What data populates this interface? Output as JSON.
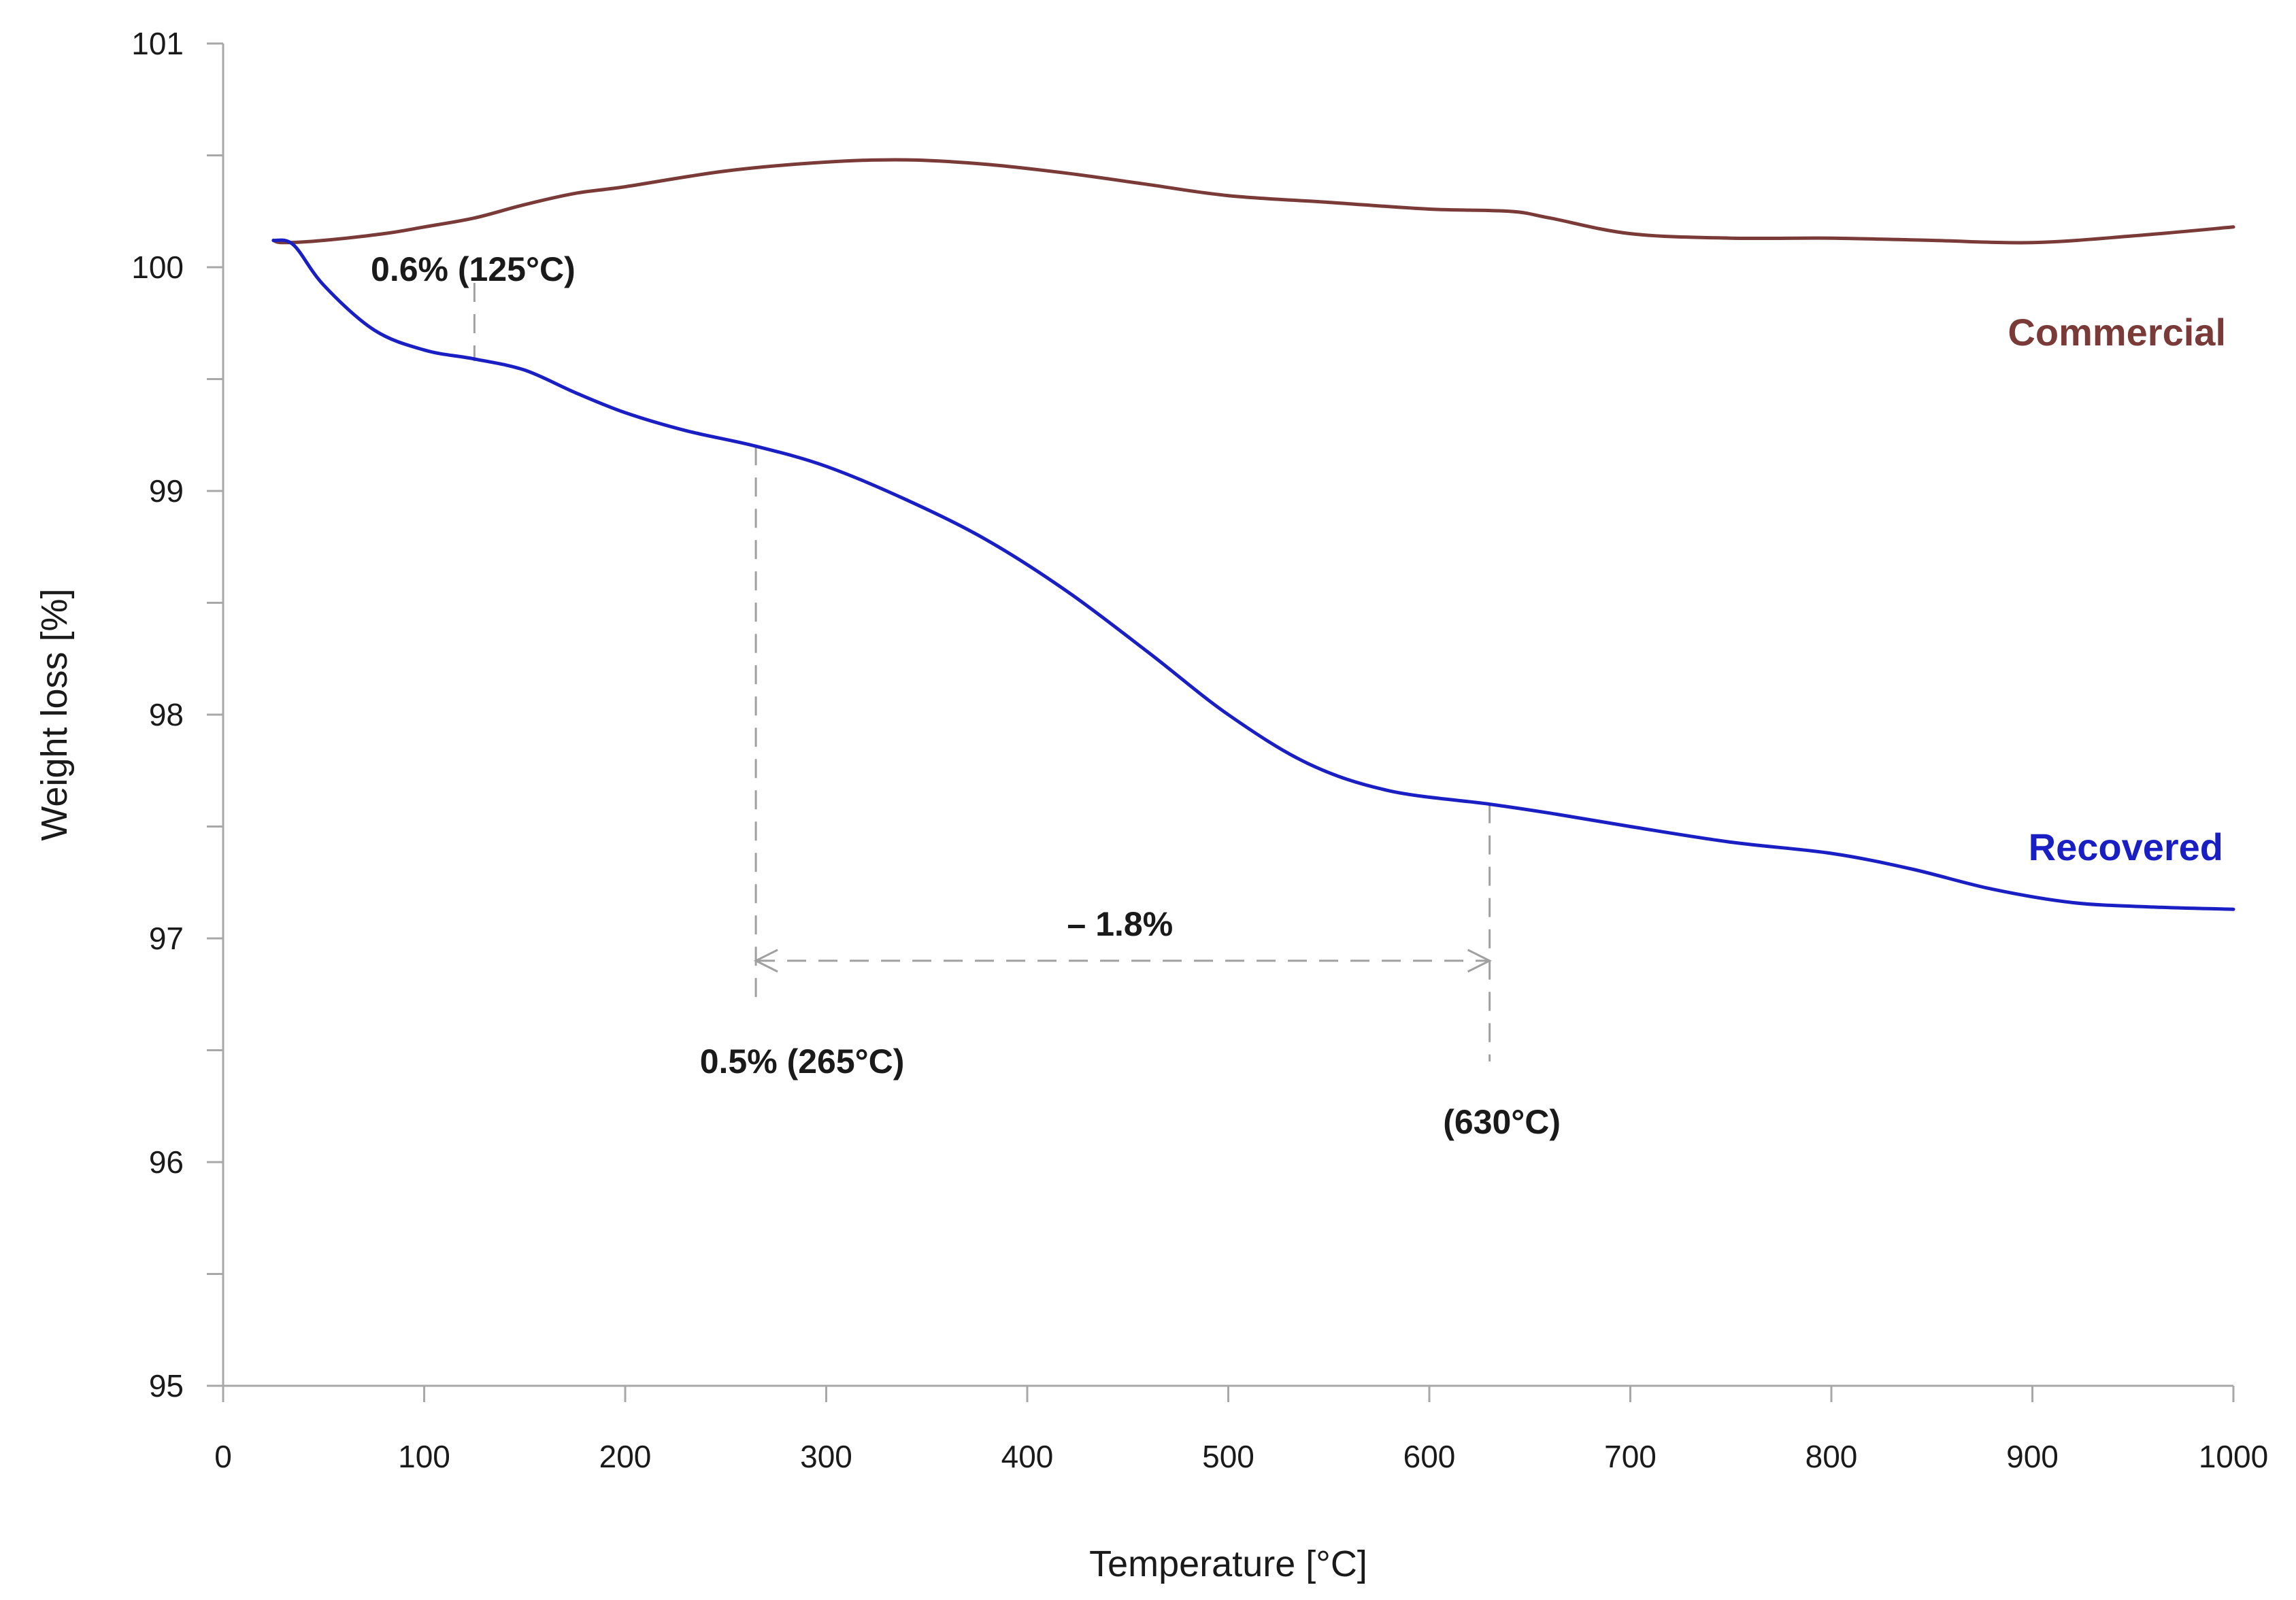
{
  "chart_data": {
    "type": "line",
    "title": "",
    "xlabel": "Temperature [°C]",
    "ylabel": "Weight loss [%]",
    "xlim": [
      0,
      1000
    ],
    "ylim": [
      95,
      101
    ],
    "xticks": [
      0,
      100,
      200,
      300,
      400,
      500,
      600,
      700,
      800,
      900,
      1000
    ],
    "xtick_labels": [
      "0",
      "100",
      "200",
      "300",
      "400",
      "500",
      "600",
      "700",
      "800",
      "900",
      "1000"
    ],
    "yticks_labeled": [
      95,
      96,
      97,
      98,
      99,
      100,
      101
    ],
    "ytick_labels": [
      "95",
      "96",
      "97",
      "98",
      "99",
      "100",
      "101"
    ],
    "yticks_minor": [
      95.5,
      96.5,
      97.5,
      98.5,
      99.5,
      100.5
    ],
    "grid": false,
    "series": [
      {
        "name": "Commercial",
        "color": "#7a3b38",
        "x": [
          25,
          30,
          50,
          80,
          100,
          125,
          150,
          175,
          200,
          250,
          300,
          340,
          380,
          420,
          460,
          500,
          550,
          600,
          640,
          660,
          700,
          750,
          800,
          850,
          900,
          950,
          1000
        ],
        "y": [
          100.12,
          100.11,
          100.12,
          100.15,
          100.18,
          100.22,
          100.28,
          100.33,
          100.36,
          100.43,
          100.47,
          100.48,
          100.46,
          100.42,
          100.37,
          100.32,
          100.29,
          100.26,
          100.25,
          100.22,
          100.15,
          100.13,
          100.13,
          100.12,
          100.11,
          100.14,
          100.18
        ]
      },
      {
        "name": "Recovered",
        "color": "#1a1fc4",
        "x": [
          25,
          35,
          50,
          75,
          100,
          125,
          150,
          175,
          200,
          230,
          265,
          300,
          340,
          380,
          420,
          460,
          500,
          540,
          580,
          630,
          660,
          700,
          750,
          800,
          840,
          880,
          920,
          960,
          1000
        ],
        "y": [
          100.12,
          100.1,
          99.92,
          99.72,
          99.63,
          99.59,
          99.54,
          99.44,
          99.35,
          99.27,
          99.2,
          99.11,
          98.96,
          98.78,
          98.55,
          98.28,
          98.0,
          97.78,
          97.66,
          97.6,
          97.56,
          97.5,
          97.43,
          97.38,
          97.31,
          97.22,
          97.16,
          97.14,
          97.13
        ]
      }
    ],
    "annotations": [
      {
        "text": "0.6% (125°C)",
        "x": 125,
        "y_top": 99.93,
        "y_bottom": 99.58
      },
      {
        "text": "0.5% (265°C)",
        "x": 265,
        "y_top": 99.2,
        "y_bottom": 96.7
      },
      {
        "text": "(630°C)",
        "x": 630,
        "y_top": 97.6,
        "y_bottom": 96.45
      },
      {
        "text": "– 1.8%",
        "x_from": 265,
        "x_to": 630,
        "y": 96.9
      }
    ]
  }
}
